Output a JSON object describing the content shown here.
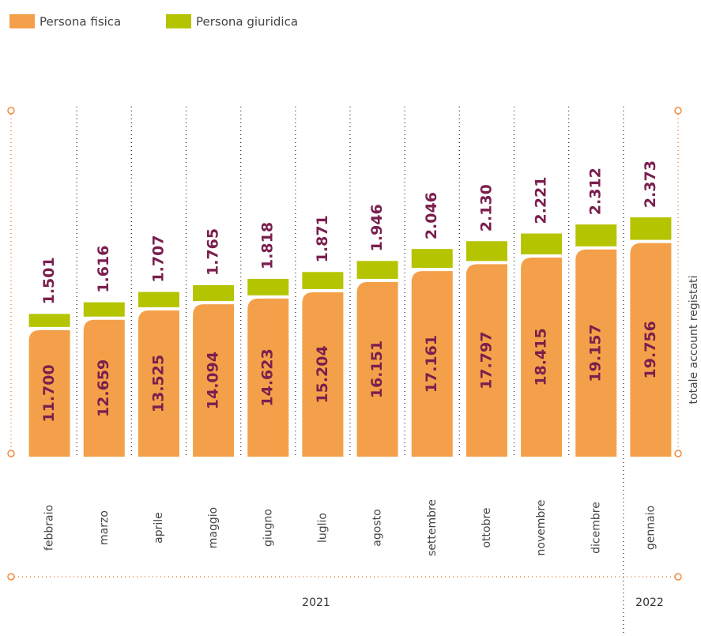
{
  "chart_data": {
    "type": "stacked_bar",
    "categories": [
      "febbraio",
      "marzo",
      "aprile",
      "maggio",
      "giugno",
      "luglio",
      "agosto",
      "settembre",
      "ottobre",
      "novembre",
      "dicembre",
      "gennaio"
    ],
    "series": [
      {
        "name": "Persona fisica",
        "color": "#f4a04a",
        "values": [
          11700,
          12659,
          13525,
          14094,
          14623,
          15204,
          16151,
          17161,
          17797,
          18415,
          19157,
          19756
        ],
        "value_labels": [
          "11.700",
          "12.659",
          "13.525",
          "14.094",
          "14.623",
          "15.204",
          "16.151",
          "17.161",
          "17.797",
          "18.415",
          "19.157",
          "19.756"
        ]
      },
      {
        "name": "Persona giuridica",
        "color": "#b5c400",
        "values": [
          1501,
          1616,
          1707,
          1765,
          1818,
          1871,
          1946,
          2046,
          2130,
          2221,
          2312,
          2373
        ],
        "value_labels": [
          "1.501",
          "1.616",
          "1.707",
          "1.765",
          "1.818",
          "1.871",
          "1.946",
          "2.046",
          "2.130",
          "2.221",
          "2.312",
          "2.373"
        ]
      }
    ],
    "ylabel": "totale account registati",
    "annotations": [
      "2021",
      "2022"
    ],
    "ylim": [
      0,
      32000
    ]
  }
}
